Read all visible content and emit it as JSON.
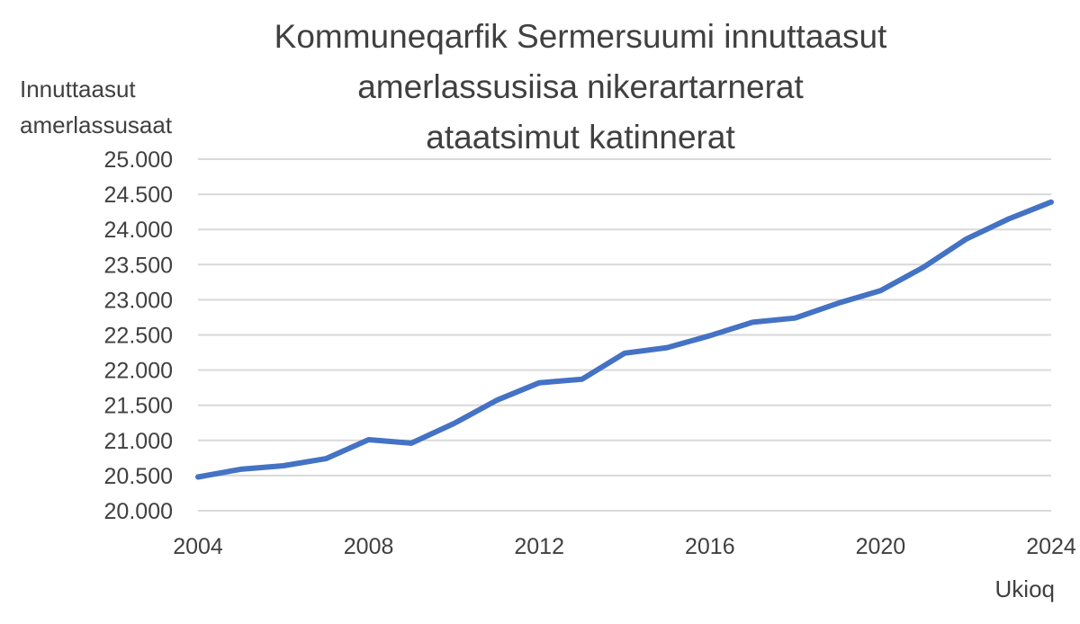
{
  "chart_data": {
    "type": "line",
    "title": [
      "Kommuneqarfik Sermersuumi innuttaasut",
      "amerlassusiisa nikerartarnerat",
      "ataatsimut katinnerat"
    ],
    "ylabel": [
      "Innuttaasut",
      "amerlassusaat"
    ],
    "xlabel": "Ukioq",
    "x": [
      2004,
      2005,
      2006,
      2007,
      2008,
      2009,
      2010,
      2011,
      2012,
      2013,
      2014,
      2015,
      2016,
      2017,
      2018,
      2019,
      2020,
      2021,
      2022,
      2023,
      2024
    ],
    "series": [
      {
        "values": [
          20480,
          20590,
          20640,
          20740,
          21010,
          20960,
          21240,
          21570,
          21820,
          21870,
          22240,
          22320,
          22490,
          22680,
          22740,
          22950,
          23130,
          23460,
          23860,
          24150,
          24390
        ],
        "color": "#4472c4"
      }
    ],
    "xticks": [
      2004,
      2008,
      2012,
      2016,
      2020,
      2024
    ],
    "yticks": [
      20000,
      20500,
      21000,
      21500,
      22000,
      22500,
      23000,
      23500,
      24000,
      24500,
      25000
    ],
    "ytick_labels": [
      "20.000",
      "20.500",
      "21.000",
      "21.500",
      "22.000",
      "22.500",
      "23.000",
      "23.500",
      "24.000",
      "24.500",
      "25.000"
    ],
    "xlim": [
      2004,
      2024
    ],
    "ylim": [
      20000,
      25000
    ],
    "grid": "horizontal",
    "legend": "none",
    "gridline_color": "#d9d9d9"
  }
}
